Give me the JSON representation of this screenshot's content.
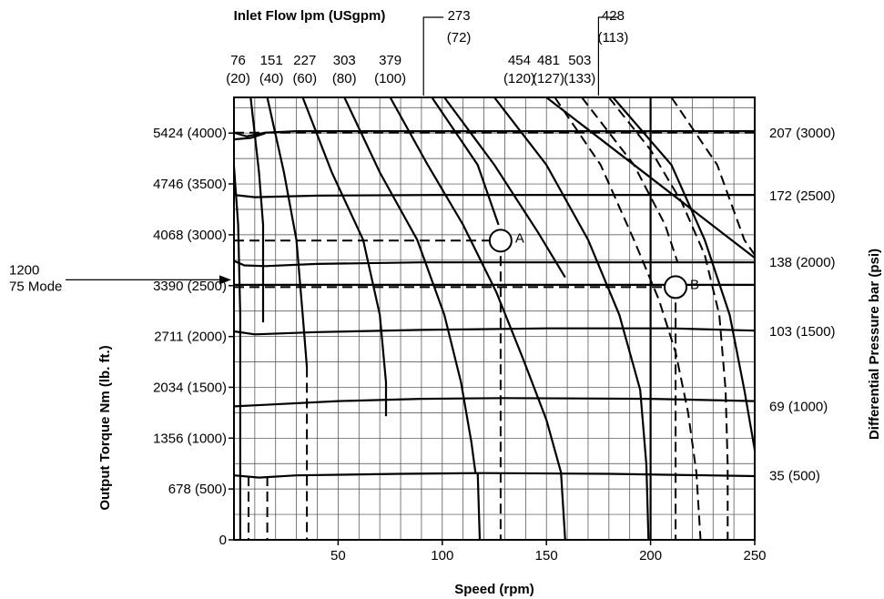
{
  "chart_data": {
    "type": "line",
    "title": "",
    "xlabel": "Speed (rpm)",
    "ylabel": "Output Torque Nm (lb. ft.)",
    "y2label": "Differential Pressure bar (psi)",
    "toplabel": "Inlet Flow lpm (USgpm)",
    "xlim": [
      0,
      250
    ],
    "ylim": [
      0,
      5900
    ],
    "grid": true,
    "x_ticks": [
      {
        "value": 50,
        "label": "50"
      },
      {
        "value": 100,
        "label": "100"
      },
      {
        "value": 150,
        "label": "150"
      },
      {
        "value": 200,
        "label": "200"
      },
      {
        "value": 250,
        "label": "250"
      }
    ],
    "y_ticks": [
      {
        "value": 0,
        "label": "0"
      },
      {
        "value": 678,
        "label": "678 (500)"
      },
      {
        "value": 1356,
        "label": "1356 (1000)"
      },
      {
        "value": 2034,
        "label": "2034 (1500)"
      },
      {
        "value": 2711,
        "label": "2711 (2000)"
      },
      {
        "value": 3390,
        "label": "3390 (2500)"
      },
      {
        "value": 4068,
        "label": "4068 (3000)"
      },
      {
        "value": 4746,
        "label": "4746 (3500)"
      },
      {
        "value": 5424,
        "label": "5424 (4000)"
      }
    ],
    "y2_ticks": [
      {
        "value": 855,
        "label": "35 (500)"
      },
      {
        "value": 1780,
        "label": "69 (1000)"
      },
      {
        "value": 2780,
        "label": "103 (1500)"
      },
      {
        "value": 3700,
        "label": "138 (2000)"
      },
      {
        "value": 4590,
        "label": "172 (2500)"
      },
      {
        "value": 5424,
        "label": "207 (3000)"
      }
    ],
    "flow_labels": [
      {
        "x": 2,
        "lpm": "76",
        "gpm": "(20)",
        "row": 1
      },
      {
        "x": 18,
        "lpm": "151",
        "gpm": "(40)",
        "row": 1
      },
      {
        "x": 34,
        "lpm": "227",
        "gpm": "(60)",
        "row": 1
      },
      {
        "x": 53,
        "lpm": "303",
        "gpm": "(80)",
        "row": 1
      },
      {
        "x": 75,
        "lpm": "379",
        "gpm": "(100)",
        "row": 1
      },
      {
        "x": 108,
        "lpm": "273",
        "gpm": "(72)",
        "row": 0,
        "leader_x": 91
      },
      {
        "x": 182,
        "lpm": "428",
        "gpm": "(113)",
        "row": 0,
        "leader_x": 175
      },
      {
        "x": 137,
        "lpm": "454",
        "gpm": "(120)",
        "row": 1
      },
      {
        "x": 151,
        "lpm": "481",
        "gpm": "(127)",
        "row": 1
      },
      {
        "x": 166,
        "lpm": "503",
        "gpm": "(133)",
        "row": 1
      }
    ],
    "series": [
      {
        "style": "solid",
        "points": [
          [
            0,
            860
          ],
          [
            12,
            830
          ],
          [
            30,
            860
          ],
          [
            80,
            880
          ],
          [
            120,
            890
          ],
          [
            180,
            880
          ],
          [
            250,
            850
          ]
        ]
      },
      {
        "style": "solid",
        "points": [
          [
            0,
            1780
          ],
          [
            15,
            1800
          ],
          [
            50,
            1850
          ],
          [
            90,
            1880
          ],
          [
            130,
            1890
          ],
          [
            200,
            1880
          ],
          [
            250,
            1850
          ]
        ]
      },
      {
        "style": "solid",
        "points": [
          [
            0,
            2780
          ],
          [
            10,
            2740
          ],
          [
            40,
            2770
          ],
          [
            90,
            2800
          ],
          [
            150,
            2820
          ],
          [
            210,
            2820
          ],
          [
            250,
            2790
          ]
        ]
      },
      {
        "style": "solid",
        "points": [
          [
            0,
            3720
          ],
          [
            5,
            3660
          ],
          [
            15,
            3650
          ],
          [
            40,
            3680
          ],
          [
            90,
            3700
          ],
          [
            150,
            3700
          ],
          [
            250,
            3700
          ]
        ]
      },
      {
        "style": "solid",
        "points": [
          [
            0,
            4600
          ],
          [
            10,
            4570
          ],
          [
            40,
            4590
          ],
          [
            100,
            4600
          ],
          [
            250,
            4600
          ]
        ]
      },
      {
        "style": "solid",
        "points": [
          [
            0,
            5430
          ],
          [
            6,
            5380
          ],
          [
            15,
            5430
          ],
          [
            30,
            5450
          ],
          [
            250,
            5450
          ]
        ]
      },
      {
        "style": "solid",
        "points": [
          [
            0,
            5340
          ],
          [
            8,
            5360
          ],
          [
            15,
            5420
          ]
        ]
      },
      {
        "style": "solid",
        "points": [
          [
            0,
            3400
          ],
          [
            250,
            3400
          ]
        ]
      },
      {
        "style": "solid",
        "points": [
          [
            150,
            5900
          ],
          [
            250,
            3760
          ]
        ]
      },
      {
        "style": "solid",
        "points": [
          [
            200,
            0
          ],
          [
            200,
            5900
          ]
        ]
      },
      {
        "style": "solid",
        "points": [
          [
            0,
            4980
          ],
          [
            2,
            4200
          ],
          [
            3,
            3000
          ],
          [
            3,
            0
          ]
        ]
      },
      {
        "style": "solid",
        "points": [
          [
            8,
            5900
          ],
          [
            12,
            4900
          ],
          [
            14,
            4200
          ],
          [
            14,
            3500
          ],
          [
            14,
            2900
          ]
        ]
      },
      {
        "style": "solid",
        "points": [
          [
            16,
            5900
          ],
          [
            24,
            4900
          ],
          [
            30,
            4000
          ],
          [
            33,
            3000
          ],
          [
            35,
            2300
          ]
        ]
      },
      {
        "style": "solid",
        "points": [
          [
            33,
            5900
          ],
          [
            47,
            4900
          ],
          [
            62,
            4000
          ],
          [
            70,
            3000
          ],
          [
            73,
            2100
          ],
          [
            73,
            1650
          ]
        ]
      },
      {
        "style": "solid",
        "points": [
          [
            53,
            5900
          ],
          [
            70,
            4900
          ],
          [
            88,
            4000
          ],
          [
            101,
            3000
          ],
          [
            109,
            2100
          ],
          [
            114,
            1300
          ],
          [
            116,
            880
          ]
        ]
      },
      {
        "style": "solid",
        "points": [
          [
            75,
            5900
          ],
          [
            93,
            5000
          ],
          [
            110,
            4200
          ],
          [
            126,
            3300
          ],
          [
            139,
            2400
          ],
          [
            150,
            1600
          ],
          [
            157,
            900
          ],
          [
            159,
            0
          ]
        ]
      },
      {
        "style": "solid",
        "points": [
          [
            95,
            5900
          ],
          [
            117,
            5000
          ],
          [
            127,
            4200
          ]
        ]
      },
      {
        "style": "solid",
        "points": [
          [
            101,
            5900
          ],
          [
            125,
            5000
          ],
          [
            146,
            4100
          ],
          [
            159,
            3500
          ]
        ]
      },
      {
        "style": "solid",
        "points": [
          [
            125,
            5900
          ],
          [
            150,
            5000
          ],
          [
            170,
            4000
          ],
          [
            185,
            3000
          ],
          [
            195,
            2000
          ],
          [
            198,
            1000
          ],
          [
            199,
            0
          ]
        ]
      },
      {
        "style": "solid",
        "points": [
          [
            182,
            5900
          ],
          [
            210,
            5000
          ],
          [
            226,
            4000
          ],
          [
            238,
            3000
          ],
          [
            245,
            2000
          ],
          [
            250,
            1200
          ]
        ]
      },
      {
        "style": "solid",
        "points": [
          [
            117,
            900
          ],
          [
            118,
            0
          ]
        ]
      },
      {
        "style": "dashed",
        "points": [
          [
            0,
            3990
          ],
          [
            127,
            3990
          ]
        ]
      },
      {
        "style": "dashed",
        "points": [
          [
            0,
            3370
          ],
          [
            212,
            3370
          ]
        ]
      },
      {
        "style": "dashed",
        "points": [
          [
            0,
            5430
          ],
          [
            250,
            5430
          ]
        ]
      },
      {
        "style": "dashed",
        "points": [
          [
            7,
            850
          ],
          [
            7,
            0
          ]
        ]
      },
      {
        "style": "dashed",
        "points": [
          [
            16,
            850
          ],
          [
            16,
            0
          ]
        ]
      },
      {
        "style": "dashed",
        "points": [
          [
            35,
            2300
          ],
          [
            35,
            0
          ]
        ]
      },
      {
        "style": "dashed",
        "points": [
          [
            128,
            3990
          ],
          [
            128,
            0
          ]
        ]
      },
      {
        "style": "dashed",
        "points": [
          [
            212,
            3370
          ],
          [
            212,
            0
          ]
        ]
      },
      {
        "style": "dashed",
        "points": [
          [
            154,
            5900
          ],
          [
            176,
            5000
          ],
          [
            192,
            4000
          ],
          [
            204,
            3200
          ],
          [
            212,
            2500
          ],
          [
            218,
            1700
          ],
          [
            222,
            900
          ],
          [
            224,
            0
          ]
        ]
      },
      {
        "style": "dashed",
        "points": [
          [
            167,
            5900
          ],
          [
            192,
            5000
          ],
          [
            207,
            4200
          ],
          [
            213,
            3700
          ]
        ]
      },
      {
        "style": "dashed",
        "points": [
          [
            180,
            5900
          ],
          [
            200,
            5200
          ],
          [
            215,
            4500
          ],
          [
            226,
            3800
          ],
          [
            233,
            3000
          ],
          [
            236,
            2000
          ],
          [
            237,
            1000
          ],
          [
            237,
            0
          ]
        ]
      },
      {
        "style": "dashed",
        "points": [
          [
            210,
            5900
          ],
          [
            232,
            5000
          ],
          [
            245,
            4000
          ],
          [
            250,
            3800
          ]
        ]
      }
    ],
    "annotations": [
      {
        "x": 128,
        "y": 3990,
        "label": "A"
      },
      {
        "x": 212,
        "y": 3370,
        "label": "B"
      }
    ],
    "mode_note": {
      "line1": "1200",
      "line2": "75 Mode",
      "y": 3370
    }
  }
}
